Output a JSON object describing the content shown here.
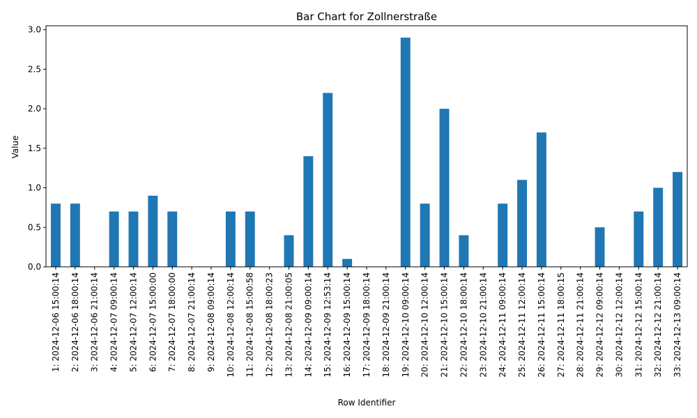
{
  "chart_data": {
    "type": "bar",
    "title": "Bar Chart for Zollnerstraße",
    "xlabel": "Row Identifier",
    "ylabel": "Value",
    "ylim": [
      0,
      3.05
    ],
    "yticks": [
      "0.0",
      "0.5",
      "1.0",
      "1.5",
      "2.0",
      "2.5",
      "3.0"
    ],
    "bar_color": "#1f77b4",
    "grid": false,
    "legend": "none",
    "categories": [
      "1: 2024-12-06 15:00:14",
      "2: 2024-12-06 18:00:14",
      "3: 2024-12-06 21:00:14",
      "4: 2024-12-07 09:00:14",
      "5: 2024-12-07 12:00:14",
      "6: 2024-12-07 15:00:00",
      "7: 2024-12-07 18:00:00",
      "8: 2024-12-07 21:00:14",
      "9: 2024-12-08 09:00:14",
      "10: 2024-12-08 12:00:14",
      "11: 2024-12-08 15:00:58",
      "12: 2024-12-08 18:00:23",
      "13: 2024-12-08 21:00:05",
      "14: 2024-12-09 09:00:14",
      "15: 2024-12-09 12:53:14",
      "16: 2024-12-09 15:00:14",
      "17: 2024-12-09 18:00:14",
      "18: 2024-12-09 21:00:14",
      "19: 2024-12-10 09:00:14",
      "20: 2024-12-10 12:00:14",
      "21: 2024-12-10 15:00:14",
      "22: 2024-12-10 18:00:14",
      "23: 2024-12-10 21:00:14",
      "24: 2024-12-11 09:00:14",
      "25: 2024-12-11 12:00:14",
      "26: 2024-12-11 15:00:14",
      "27: 2024-12-11 18:00:15",
      "28: 2024-12-11 21:00:14",
      "29: 2024-12-12 09:00:14",
      "30: 2024-12-12 12:00:14",
      "31: 2024-12-12 15:00:14",
      "32: 2024-12-12 21:00:14",
      "33: 2024-12-13 09:00:14"
    ],
    "values": [
      0.8,
      0.8,
      0.0,
      0.7,
      0.7,
      0.9,
      0.7,
      0.0,
      0.0,
      0.7,
      0.7,
      0.0,
      0.4,
      1.4,
      2.2,
      0.1,
      0.0,
      0.0,
      2.9,
      0.8,
      2.0,
      0.4,
      0.0,
      0.8,
      1.1,
      1.7,
      0.0,
      0.0,
      0.5,
      0.0,
      0.7,
      1.0,
      1.2
    ]
  }
}
